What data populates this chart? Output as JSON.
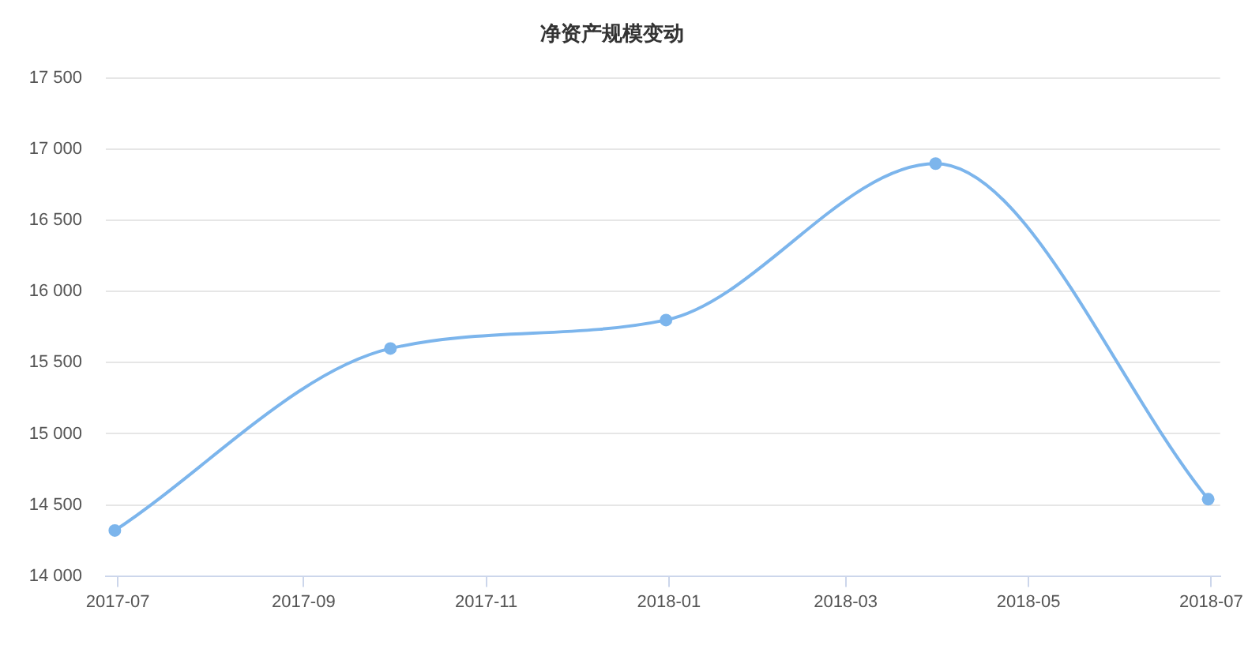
{
  "chart_data": {
    "type": "line",
    "title": "净资产规模变动",
    "x": [
      "2017-06-30",
      "2017-09-30",
      "2017-12-31",
      "2018-03-31",
      "2018-06-30"
    ],
    "series": [
      {
        "color": "#7cb5ec",
        "values": [
          14320,
          15600,
          15800,
          16900,
          14540
        ]
      }
    ],
    "xlim": [
      "2017-06-27",
      "2018-07-04"
    ],
    "xticks": [
      "2017-07",
      "2017-09",
      "2017-11",
      "2018-01",
      "2018-03",
      "2018-05",
      "2018-07"
    ],
    "ylim": [
      14000,
      17500
    ],
    "yticks": [
      {
        "value": 14000,
        "label": "14 000"
      },
      {
        "value": 14500,
        "label": "14 500"
      },
      {
        "value": 15000,
        "label": "15 000"
      },
      {
        "value": 15500,
        "label": "15 500"
      },
      {
        "value": 16000,
        "label": "16 000"
      },
      {
        "value": 16500,
        "label": "16 500"
      },
      {
        "value": 17000,
        "label": "17 000"
      },
      {
        "value": 17500,
        "label": "17 500"
      }
    ],
    "grid": "y",
    "marker": "circle",
    "line_style": "solid"
  }
}
